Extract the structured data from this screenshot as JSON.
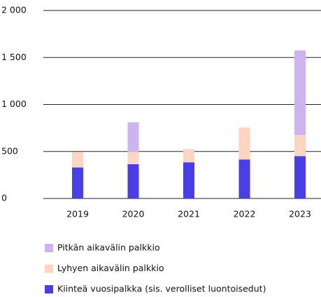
{
  "chart_data": {
    "type": "stacked_bar",
    "categories": [
      "2019",
      "2020",
      "2021",
      "2022",
      "2023"
    ],
    "series": [
      {
        "name": "Kiinteä vuosipalkka (sis. verolliset luontoisedut)",
        "color": "#4a3ee8",
        "values": [
          330,
          365,
          385,
          415,
          450
        ]
      },
      {
        "name": "Lyhyen aikavälin palkkio",
        "color": "#fdd5c0",
        "values": [
          165,
          130,
          140,
          340,
          225
        ]
      },
      {
        "name": "Pitkän aikavälin palkkio",
        "color": "#cdb4f0",
        "values": [
          0,
          315,
          0,
          0,
          900
        ]
      }
    ],
    "ylim": [
      0,
      2000
    ],
    "yticks": [
      0,
      500,
      {
        "value": 1000,
        "label": "1 000"
      },
      {
        "value": 1500,
        "label": "1 500"
      },
      {
        "value": 2000,
        "label": "2 000"
      }
    ],
    "grid": true
  }
}
